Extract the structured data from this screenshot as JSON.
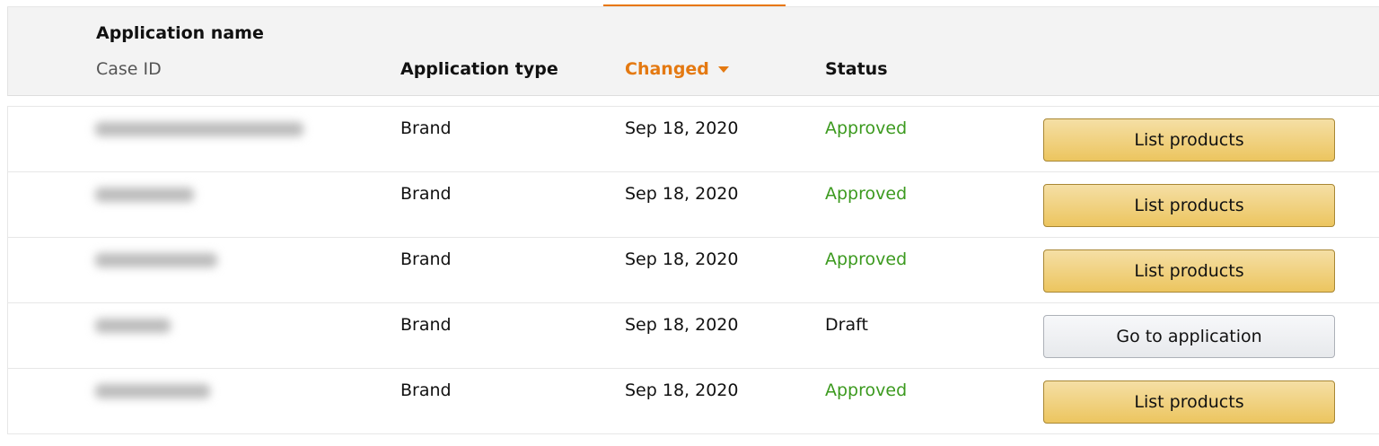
{
  "header": {
    "application_name": "Application name",
    "case_id": "Case ID",
    "application_type": "Application type",
    "changed": "Changed",
    "status": "Status",
    "sort": {
      "column": "Changed",
      "direction": "descending"
    }
  },
  "colors": {
    "accent": "#e47911",
    "approved": "#3c9a1f",
    "primary_button": "#ecc55f"
  },
  "rows": [
    {
      "type": "Brand",
      "changed": "Sep 18, 2020",
      "status": "Approved",
      "action": "List products"
    },
    {
      "type": "Brand",
      "changed": "Sep 18, 2020",
      "status": "Approved",
      "action": "List products"
    },
    {
      "type": "Brand",
      "changed": "Sep 18, 2020",
      "status": "Approved",
      "action": "List products"
    },
    {
      "type": "Brand",
      "changed": "Sep 18, 2020",
      "status": "Draft",
      "action": "Go to application"
    },
    {
      "type": "Brand",
      "changed": "Sep 18, 2020",
      "status": "Approved",
      "action": "List products"
    }
  ]
}
